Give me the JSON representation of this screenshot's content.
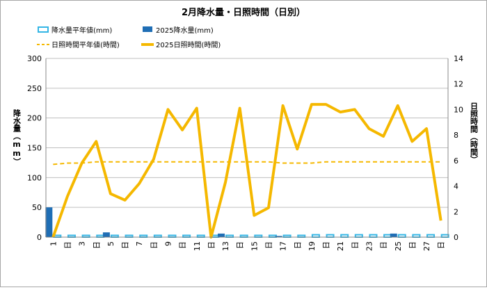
{
  "chart_data": {
    "type": "bar+line",
    "title": "2月降水量・日照時間（日別）",
    "ylabel_left": "降水量（mm）",
    "ylabel_right": "日照時間（時間）",
    "ylim_left": [
      0,
      300
    ],
    "ylim_right": [
      0,
      14
    ],
    "yticks_left": [
      "0",
      "50",
      "100",
      "150",
      "200",
      "250",
      "300"
    ],
    "yticks_right": [
      "0",
      "2",
      "4",
      "6",
      "8",
      "10",
      "12",
      "14"
    ],
    "grid": true,
    "legend_position": "top-left",
    "x": [
      1,
      2,
      3,
      4,
      5,
      6,
      7,
      8,
      9,
      10,
      11,
      12,
      13,
      14,
      15,
      16,
      17,
      18,
      19,
      20,
      21,
      22,
      23,
      24,
      25,
      26,
      27,
      28
    ],
    "xtick_labels": [
      "1",
      "日",
      "3",
      "日",
      "5",
      "日",
      "7",
      "日",
      "9",
      "日",
      "11",
      "日",
      "13",
      "日",
      "15",
      "日",
      "17",
      "日",
      "19",
      "日",
      "21",
      "日",
      "23",
      "日",
      "25",
      "日",
      "27",
      "日"
    ],
    "series": [
      {
        "name": "降水量平年値(mm)",
        "kind": "bar-outline",
        "axis": "left",
        "color": "#33B5E5",
        "values": [
          3,
          3,
          3,
          3,
          3,
          3,
          3,
          3,
          3,
          3,
          3,
          3,
          3,
          3,
          3,
          3,
          3,
          3,
          4,
          4,
          4,
          4,
          4,
          4,
          4,
          4,
          4,
          4
        ]
      },
      {
        "name": "2025降水量(mm)",
        "kind": "bar",
        "axis": "left",
        "color": "#1F6EB5",
        "values": [
          50,
          0,
          0,
          0,
          8,
          0,
          0,
          0,
          0,
          0,
          0,
          0,
          6,
          0,
          0,
          0,
          2,
          0,
          0,
          0,
          0,
          0,
          0,
          0,
          6,
          0,
          0,
          0
        ]
      },
      {
        "name": "日照時間平年値(時間)",
        "kind": "line-dashed",
        "axis": "right",
        "color": "#F5B800",
        "values": [
          5.7,
          5.8,
          5.8,
          5.9,
          5.9,
          5.9,
          5.9,
          5.9,
          5.9,
          5.9,
          5.9,
          5.9,
          5.9,
          5.9,
          5.9,
          5.9,
          5.8,
          5.8,
          5.8,
          5.9,
          5.9,
          5.9,
          5.9,
          5.9,
          5.9,
          5.9,
          5.9,
          5.9
        ]
      },
      {
        "name": "2025日照時間(時間)",
        "kind": "line",
        "axis": "right",
        "color": "#F5B800",
        "values": [
          0,
          3.2,
          5.8,
          7.5,
          3.4,
          2.9,
          4.2,
          6.1,
          10.0,
          8.4,
          10.1,
          0,
          4.3,
          10.1,
          1.7,
          2.3,
          10.3,
          6.9,
          10.4,
          10.4,
          9.8,
          10.0,
          8.5,
          7.9,
          10.3,
          7.5,
          8.5,
          1.3
        ]
      }
    ]
  },
  "colors": {
    "axis": "#888888",
    "grid": "#bfbfbf",
    "border": "#a6a6a6"
  }
}
